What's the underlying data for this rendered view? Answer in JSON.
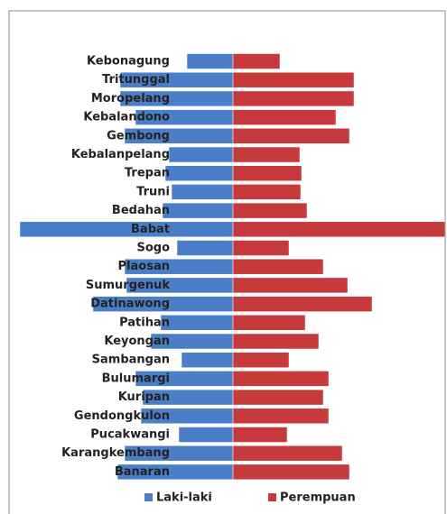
{
  "chart_data": {
    "type": "pyramid",
    "categories": [
      "Kebonagung",
      "Tritunggal",
      "Moropelang",
      "Kebalandono",
      "Gembong",
      "Kebalanpelang",
      "Trepan",
      "Truni",
      "Bedahan",
      "Babat",
      "Sogo",
      "Plaosan",
      "Sumurgenuk",
      "Datinawong",
      "Patihan",
      "Keyongan",
      "Sambangan",
      "Bulumargi",
      "Kuripan",
      "Gendongkulon",
      "Pucakwangi",
      "Karangkembang",
      "Banaran"
    ],
    "series": [
      {
        "name": "Laki-laki",
        "color": "#4a7fc8",
        "values": [
          51,
          125,
          125,
          108,
          120,
          71,
          75,
          68,
          78,
          236,
          62,
          120,
          118,
          155,
          80,
          91,
          57,
          108,
          100,
          102,
          60,
          120,
          128
        ]
      },
      {
        "name": "Perempuan",
        "color": "#c63a3c",
        "values": [
          52,
          134,
          134,
          114,
          129,
          74,
          76,
          75,
          82,
          235,
          62,
          100,
          127,
          154,
          80,
          95,
          62,
          106,
          100,
          106,
          60,
          121,
          129
        ]
      }
    ],
    "legend": "bottom"
  }
}
